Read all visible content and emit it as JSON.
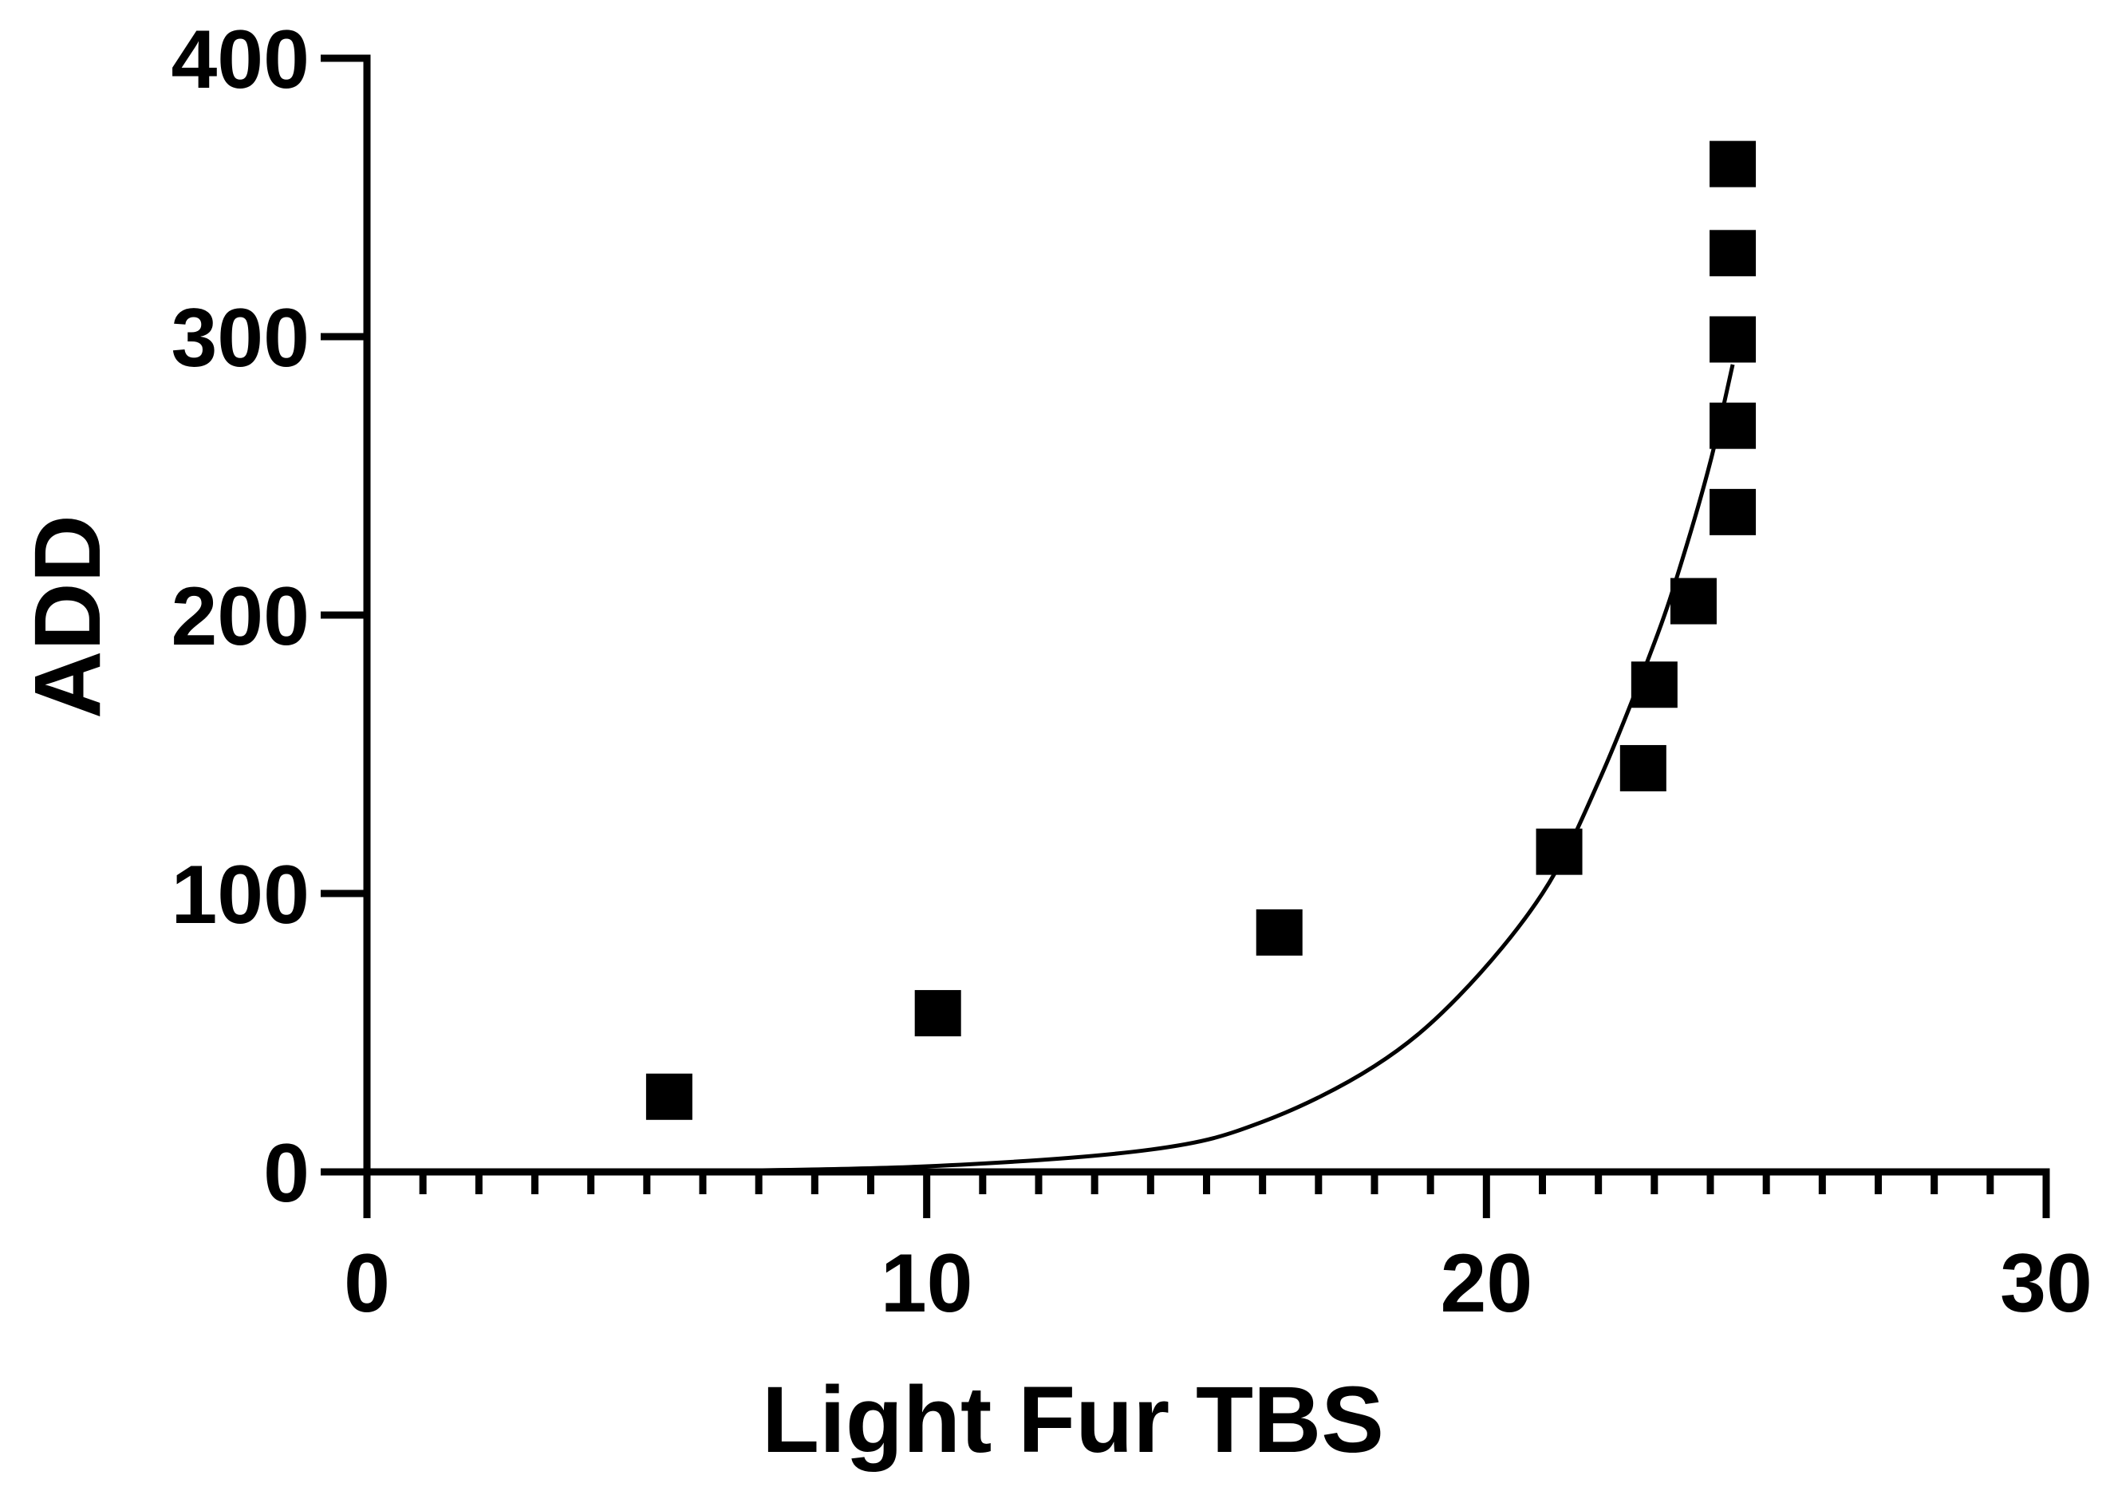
{
  "chart_data": {
    "type": "scatter",
    "xlabel": "Light Fur TBS",
    "ylabel": "ADD",
    "xlim": [
      0,
      30
    ],
    "ylim": [
      0,
      400
    ],
    "x_ticks": [
      0,
      10,
      20,
      30
    ],
    "y_ticks": [
      0,
      100,
      200,
      300,
      400
    ],
    "x_minor_step": 1,
    "grid": false,
    "legend": "none",
    "series": [
      {
        "marker": "square",
        "color": "#000000",
        "points": [
          {
            "x": 5.4,
            "y": 27
          },
          {
            "x": 10.2,
            "y": 57
          },
          {
            "x": 16.3,
            "y": 86
          },
          {
            "x": 21.3,
            "y": 115
          },
          {
            "x": 22.8,
            "y": 145
          },
          {
            "x": 23.0,
            "y": 175
          },
          {
            "x": 23.7,
            "y": 205
          },
          {
            "x": 24.4,
            "y": 237
          },
          {
            "x": 24.4,
            "y": 268
          },
          {
            "x": 24.4,
            "y": 299
          },
          {
            "x": 24.4,
            "y": 330
          },
          {
            "x": 24.4,
            "y": 362
          }
        ]
      }
    ],
    "fit_curve": {
      "type": "exponential",
      "color": "#000000",
      "x_range": [
        5.4,
        24.4
      ],
      "points": [
        {
          "x": 5.4,
          "y": 0.1
        },
        {
          "x": 10,
          "y": 2
        },
        {
          "x": 14,
          "y": 8
        },
        {
          "x": 16,
          "y": 18
        },
        {
          "x": 18,
          "y": 38
        },
        {
          "x": 19.5,
          "y": 63
        },
        {
          "x": 21,
          "y": 100
        },
        {
          "x": 22,
          "y": 140
        },
        {
          "x": 23,
          "y": 190
        },
        {
          "x": 23.5,
          "y": 220
        },
        {
          "x": 24,
          "y": 255
        },
        {
          "x": 24.4,
          "y": 290
        }
      ]
    }
  }
}
